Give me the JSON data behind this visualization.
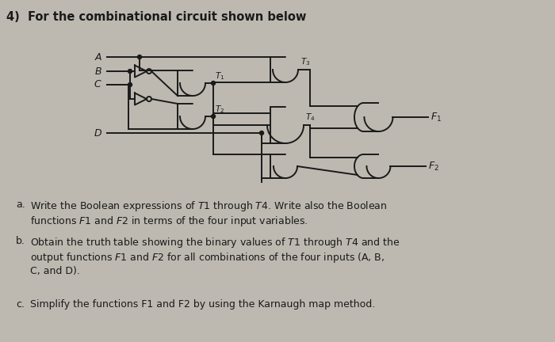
{
  "bg_color": "#bdb9b0",
  "text_color": "#1a1a1a",
  "title": "4)  For the combinational circuit shown below",
  "qa_label": "a.",
  "qa_text": "Write the Boolean expressions of $T1$ through $T4$. Write also the Boolean\nfunctions $F1$ and $F2$ in terms of the four input variables.",
  "qb_label": "b.",
  "qb_text": "Obtain the truth table showing the binary values of $T1$ through $T4$ and the\noutput functions $F1$ and $F2$ for all combinations of the four inputs (A, B,\nC, and D).",
  "qc_label": "c.",
  "qc_text": "Simplify the functions F1 and F2 by using the Karnaugh map method.",
  "lw": 1.4
}
